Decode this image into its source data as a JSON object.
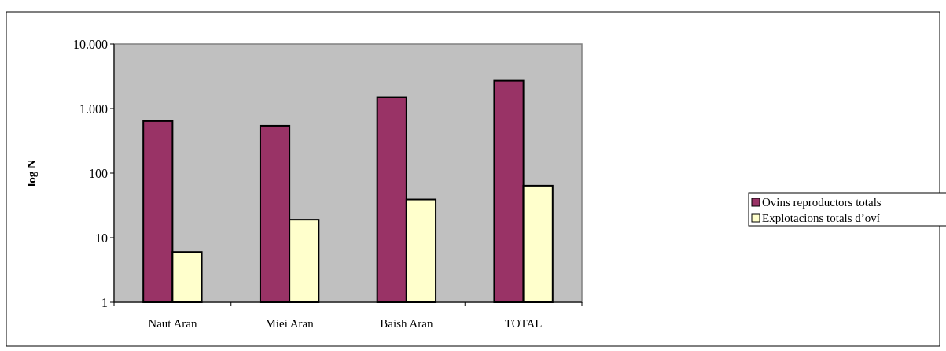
{
  "chart_data": {
    "type": "bar",
    "ylabel": "log N",
    "log": true,
    "categories": [
      "Naut Aran",
      "Miei Aran",
      "Baish Aran",
      "TOTAL"
    ],
    "series": [
      {
        "name": "Ovins reproductors totals",
        "color": "#993366",
        "values": [
          640,
          540,
          1500,
          2700
        ]
      },
      {
        "name": "Explotacions totals d’oví",
        "color": "#ffffcc",
        "values": [
          6,
          19,
          39,
          64
        ]
      }
    ],
    "ylim": [
      1,
      10000
    ],
    "yticks": [
      1,
      10,
      100,
      {
        "value": 1000,
        "label": "1.000"
      },
      {
        "value": 10000,
        "label": "10.000"
      }
    ],
    "grid": false,
    "legend": "right"
  }
}
